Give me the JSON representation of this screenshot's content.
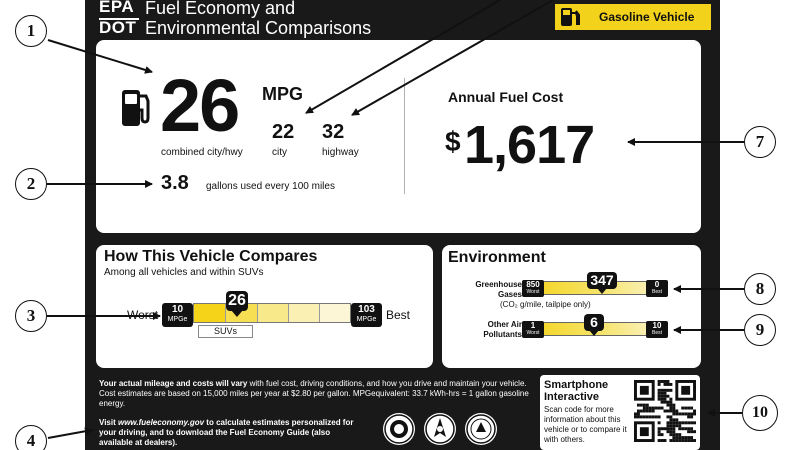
{
  "header": {
    "agency_top": "EPA",
    "agency_bottom": "DOT",
    "title_line1": "Fuel Economy and",
    "title_line2": "Environmental Comparisons",
    "vehicle_type": "Gasoline Vehicle",
    "accent_color": "#f2d21b",
    "icon": "fuel-pump-icon"
  },
  "economy": {
    "combined_mpg": "26",
    "mpg_unit": "MPG",
    "city_mpg": "22",
    "highway_mpg": "32",
    "combined_label": "combined city/hwy",
    "city_label": "city",
    "highway_label": "highway",
    "gallons": "3.8",
    "gallons_text": "gallons used every 100 miles"
  },
  "cost": {
    "label": "Annual Fuel Cost",
    "currency": "$",
    "amount": "1,617"
  },
  "comparison": {
    "title": "How This Vehicle Compares",
    "subtitle": "Among all vehicles and within SUVs",
    "worst_label": "Worst",
    "best_label": "Best",
    "worst_value": "10",
    "best_value": "103",
    "unit": "MPGe",
    "vehicle_value": "26",
    "class_label": "SUVs"
  },
  "environment": {
    "title": "Environment",
    "ghg_label": "Greenhouse Gases",
    "ghg_sub": "(CO₂ g/mile, tailpipe only)",
    "ghg_worst": "850",
    "ghg_best": "0",
    "ghg_value": "347",
    "oap_label": "Other Air Pollutants",
    "oap_worst": "1",
    "oap_best": "10",
    "oap_value": "6",
    "worst_tag": "Worst",
    "best_tag": "Best"
  },
  "footnote": {
    "bold_lead": "Your actual mileage and costs will vary",
    "text": " with fuel cost, driving conditions, and how you drive and maintain your vehicle. Cost estimates are based on 15,000 miles per year at $2.80 per gallon. MPGequivalent: 33.7 kWh-hrs = 1 gallon gasoline energy.",
    "visit_lead": "Visit ",
    "visit_url": "www.fueleconomy.gov",
    "visit_rest": " to calculate estimates personalized for your driving, and to download the Fuel Economy Guide (also available at dealers)."
  },
  "smartphone": {
    "title_line1": "Smartphone",
    "title_line2": "Interactive",
    "text": "Scan code for more information about this vehicle or to compare it with others."
  },
  "callouts": [
    "1",
    "2",
    "3",
    "4",
    "7",
    "8",
    "9",
    "10"
  ]
}
